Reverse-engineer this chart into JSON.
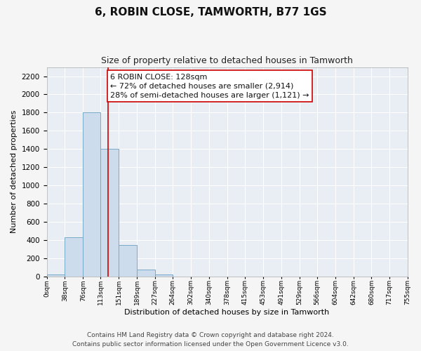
{
  "title": "6, ROBIN CLOSE, TAMWORTH, B77 1GS",
  "subtitle": "Size of property relative to detached houses in Tamworth",
  "xlabel": "Distribution of detached houses by size in Tamworth",
  "ylabel": "Number of detached properties",
  "bin_edges": [
    0,
    38,
    76,
    113,
    151,
    189,
    227,
    264,
    302,
    340,
    378,
    415,
    453,
    491,
    529,
    566,
    604,
    642,
    680,
    717,
    755
  ],
  "bar_heights": [
    20,
    430,
    1800,
    1400,
    350,
    75,
    25,
    0,
    0,
    0,
    0,
    0,
    0,
    0,
    0,
    0,
    0,
    0,
    0,
    0
  ],
  "bar_color": "#ccdcec",
  "bar_edgecolor": "#7aaac8",
  "property_line_x": 128,
  "property_line_color": "#cc0000",
  "annotation_line1": "6 ROBIN CLOSE: 128sqm",
  "annotation_line2": "← 72% of detached houses are smaller (2,914)",
  "annotation_line3": "28% of semi-detached houses are larger (1,121) →",
  "annotation_box_color": "#ffffff",
  "annotation_box_edgecolor": "#cc0000",
  "ylim": [
    0,
    2300
  ],
  "yticks": [
    0,
    200,
    400,
    600,
    800,
    1000,
    1200,
    1400,
    1600,
    1800,
    2000,
    2200
  ],
  "xtick_labels": [
    "0sqm",
    "38sqm",
    "76sqm",
    "113sqm",
    "151sqm",
    "189sqm",
    "227sqm",
    "264sqm",
    "302sqm",
    "340sqm",
    "378sqm",
    "415sqm",
    "453sqm",
    "491sqm",
    "529sqm",
    "566sqm",
    "604sqm",
    "642sqm",
    "680sqm",
    "717sqm",
    "755sqm"
  ],
  "footer_line1": "Contains HM Land Registry data © Crown copyright and database right 2024.",
  "footer_line2": "Contains public sector information licensed under the Open Government Licence v3.0.",
  "plot_bg_color": "#e8eef4",
  "fig_bg_color": "#f5f5f5",
  "grid_color": "#ffffff",
  "title_fontsize": 11,
  "subtitle_fontsize": 9,
  "annotation_fontsize": 8,
  "footer_fontsize": 6.5,
  "ylabel_fontsize": 8,
  "xlabel_fontsize": 8
}
